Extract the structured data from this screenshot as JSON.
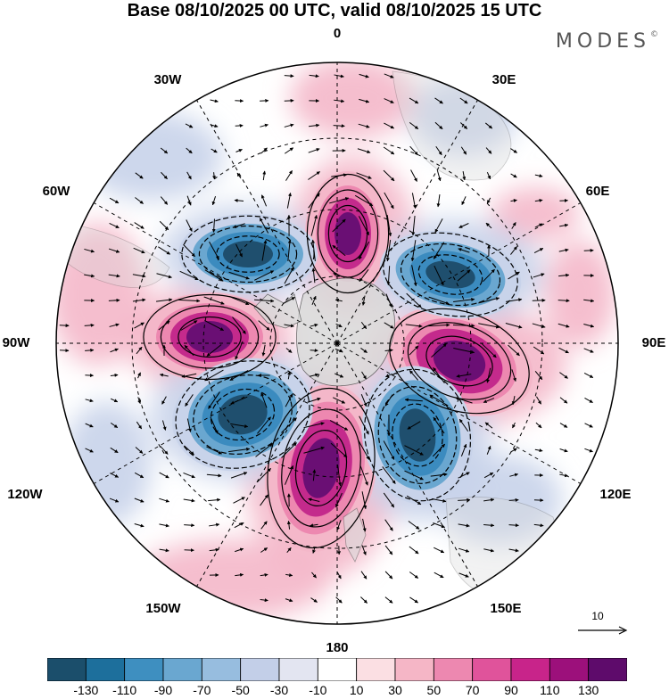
{
  "header": {
    "title": "Base 08/10/2025 00 UTC, valid 08/10/2025 15 UTC"
  },
  "brand": {
    "name": "MODES",
    "mark": "©"
  },
  "longitude_labels": [
    {
      "id": "lon-0",
      "text": "0"
    },
    {
      "id": "lon-30e",
      "text": "30E"
    },
    {
      "id": "lon-60e",
      "text": "60E"
    },
    {
      "id": "lon-90e",
      "text": "90E"
    },
    {
      "id": "lon-120e",
      "text": "120E"
    },
    {
      "id": "lon-150e",
      "text": "150E"
    },
    {
      "id": "lon-180",
      "text": "180"
    },
    {
      "id": "lon-150w",
      "text": "150W"
    },
    {
      "id": "lon-120w",
      "text": "120W"
    },
    {
      "id": "lon-90w",
      "text": "90W"
    },
    {
      "id": "lon-60w",
      "text": "60W"
    },
    {
      "id": "lon-30w",
      "text": "30W"
    }
  ],
  "vector_reference": {
    "label": "10"
  },
  "colorbar": {
    "colors": [
      "#1b4e6b",
      "#1d6f9c",
      "#3e8fc0",
      "#6aa7d0",
      "#97bddf",
      "#c3cfe8",
      "#e3e5f1",
      "#ffffff",
      "#fbdfe3",
      "#f5b6c6",
      "#ed88b0",
      "#e0539b",
      "#c8248a",
      "#9c107b",
      "#5e0b6b"
    ],
    "tick_labels": [
      "-130",
      "-110",
      "-90",
      "-70",
      "-50",
      "-30",
      "-10",
      "10",
      "30",
      "50",
      "70",
      "90",
      "110",
      "130"
    ]
  },
  "map": {
    "projection": "south polar stereographic",
    "colors": {
      "positive_strong": "#6a0f74",
      "positive_mid": "#c42a8c",
      "positive_light": "#f4b7c9",
      "negative_strong": "#1f4f6e",
      "negative_mid": "#3b8bbf",
      "negative_light": "#c8d3ea",
      "land": "#d9d9d9"
    }
  }
}
